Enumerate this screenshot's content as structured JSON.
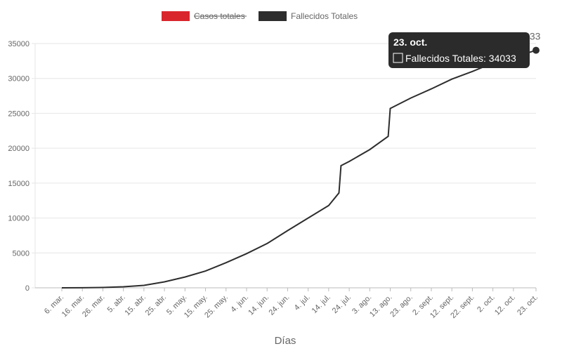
{
  "colors": {
    "cases": "#d9262c",
    "deaths": "#2d2d2d",
    "grid": "#e6e6e6",
    "axis": "#bbbbbb",
    "text": "#666666",
    "tooltip_bg": "#2b2b2b"
  },
  "legend": [
    {
      "label": "Casos totales",
      "color": "#d9262c",
      "hidden": true
    },
    {
      "label": "Fallecidos Totales",
      "color": "#2d2d2d",
      "hidden": false
    }
  ],
  "tooltip": {
    "title": "23. oct.",
    "body": "Fallecidos Totales: 34033"
  },
  "last_value_label": "34033",
  "chart_data": {
    "type": "line",
    "title": "",
    "xlabel": "Días",
    "ylabel": "",
    "x_ticks": [
      "6. mar.",
      "16. mar.",
      "26. mar.",
      "5. abr.",
      "15. abr.",
      "25. abr.",
      "5. may.",
      "15. may.",
      "25. may.",
      "4. jun.",
      "14. jun.",
      "24. jun.",
      "4. jul.",
      "14. jul.",
      "24. jul.",
      "3. ago.",
      "13. ago.",
      "23. ago.",
      "2. sept.",
      "12. sept.",
      "22. sept.",
      "2. oct.",
      "12. oct.",
      "23. oct."
    ],
    "y_ticks": [
      0,
      5000,
      10000,
      15000,
      20000,
      25000,
      30000,
      35000
    ],
    "ylim": [
      0,
      35000
    ],
    "grid": true,
    "legend_position": "top",
    "series": [
      {
        "name": "Fallecidos Totales",
        "x": [
          "6. mar.",
          "16. mar.",
          "26. mar.",
          "5. abr.",
          "15. abr.",
          "25. abr.",
          "5. may.",
          "15. may.",
          "25. may.",
          "4. jun.",
          "14. jun.",
          "24. jun.",
          "4. jul.",
          "14. jul.",
          "19. jul.",
          "20. jul.",
          "24. jul.",
          "3. ago.",
          "12. ago.",
          "13. ago.",
          "23. ago.",
          "2. sept.",
          "12. sept.",
          "22. sept.",
          "2. oct.",
          "12. oct.",
          "23. oct."
        ],
        "values": [
          0,
          10,
          50,
          150,
          350,
          850,
          1550,
          2400,
          3600,
          4900,
          6350,
          8200,
          10000,
          11800,
          13600,
          17500,
          18100,
          19800,
          21700,
          25700,
          27200,
          28500,
          29900,
          31000,
          32200,
          33000,
          34033
        ]
      }
    ]
  }
}
